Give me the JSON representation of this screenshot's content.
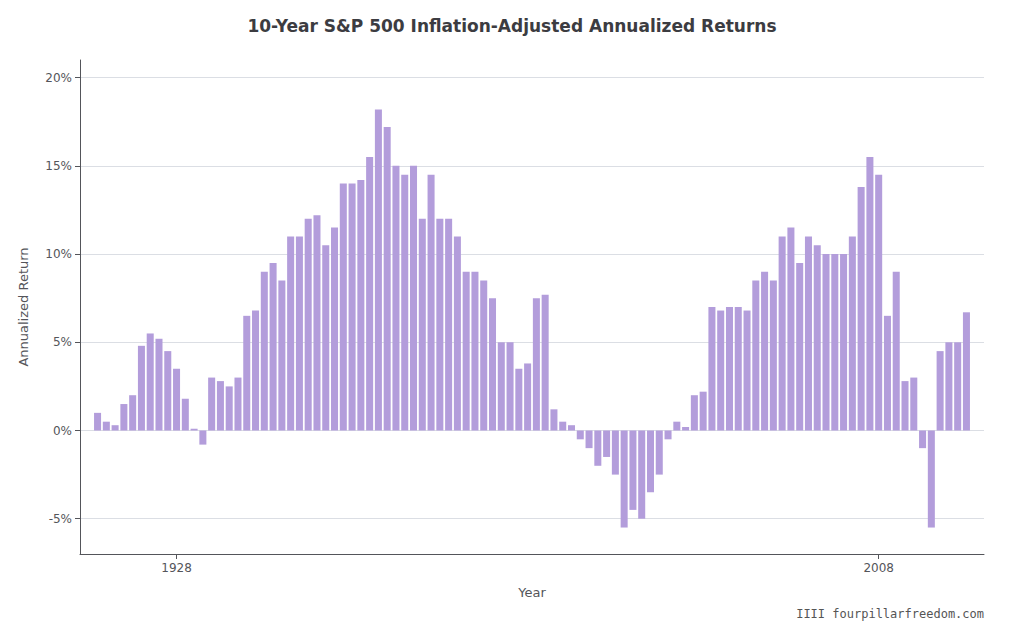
{
  "chart_data": {
    "type": "bar",
    "title": "10-Year S&P 500 Inflation-Adjusted Annualized Returns",
    "xlabel": "Year",
    "ylabel": "Annualized Return",
    "annotation": "IIII fourpillarfreedom.com",
    "color": "#b39ddb",
    "grid": true,
    "x": [
      1919,
      1920,
      1921,
      1922,
      1923,
      1924,
      1925,
      1926,
      1927,
      1928,
      1929,
      1930,
      1931,
      1932,
      1933,
      1934,
      1935,
      1936,
      1937,
      1938,
      1939,
      1940,
      1941,
      1942,
      1943,
      1944,
      1945,
      1946,
      1947,
      1948,
      1949,
      1950,
      1951,
      1952,
      1953,
      1954,
      1955,
      1956,
      1957,
      1958,
      1959,
      1960,
      1961,
      1962,
      1963,
      1964,
      1965,
      1966,
      1967,
      1968,
      1969,
      1970,
      1971,
      1972,
      1973,
      1974,
      1975,
      1976,
      1977,
      1978,
      1979,
      1980,
      1981,
      1982,
      1983,
      1984,
      1985,
      1986,
      1987,
      1988,
      1989,
      1990,
      1991,
      1992,
      1993,
      1994,
      1995,
      1996,
      1997,
      1998,
      1999,
      2000,
      2001,
      2002,
      2003,
      2004,
      2005,
      2006,
      2007,
      2008,
      2009,
      2010,
      2011,
      2012,
      2013,
      2014,
      2015,
      2016,
      2017,
      2018
    ],
    "values": [
      1.0,
      0.5,
      0.3,
      1.5,
      2.0,
      4.8,
      5.5,
      5.2,
      4.5,
      3.5,
      1.8,
      0.1,
      -0.8,
      3.0,
      2.8,
      2.5,
      3.0,
      6.5,
      6.8,
      9.0,
      9.5,
      8.5,
      11.0,
      11.0,
      12.0,
      12.2,
      10.5,
      11.5,
      14.0,
      14.0,
      14.2,
      15.5,
      18.2,
      17.2,
      15.0,
      14.5,
      15.0,
      12.0,
      14.5,
      12.0,
      12.0,
      11.0,
      9.0,
      9.0,
      8.5,
      7.5,
      5.0,
      5.0,
      3.5,
      3.8,
      7.5,
      7.7,
      1.2,
      0.5,
      0.3,
      -0.5,
      -1.0,
      -2.0,
      -1.5,
      -2.5,
      -5.5,
      -4.5,
      -5.0,
      -3.5,
      -2.5,
      -0.5,
      0.5,
      0.2,
      2.0,
      2.2,
      7.0,
      6.8,
      7.0,
      7.0,
      6.8,
      8.5,
      9.0,
      8.5,
      11.0,
      11.5,
      9.5,
      11.0,
      10.5,
      10.0,
      10.0,
      10.0,
      11.0,
      13.8,
      15.5,
      14.5,
      6.5,
      9.0,
      2.8,
      3.0,
      -1.0,
      -5.5,
      4.5,
      5.0,
      5.0,
      6.7
    ],
    "xlim": [
      1917,
      2020
    ],
    "xticks": [
      1928,
      2008
    ],
    "ylim": [
      -7,
      21
    ],
    "yticks": [
      {
        "value": -5,
        "label": "-5%"
      },
      {
        "value": 0,
        "label": "0%"
      },
      {
        "value": 5,
        "label": "5%"
      },
      {
        "value": 10,
        "label": "10%"
      },
      {
        "value": 15,
        "label": "15%"
      },
      {
        "value": 20,
        "label": "20%"
      }
    ]
  }
}
